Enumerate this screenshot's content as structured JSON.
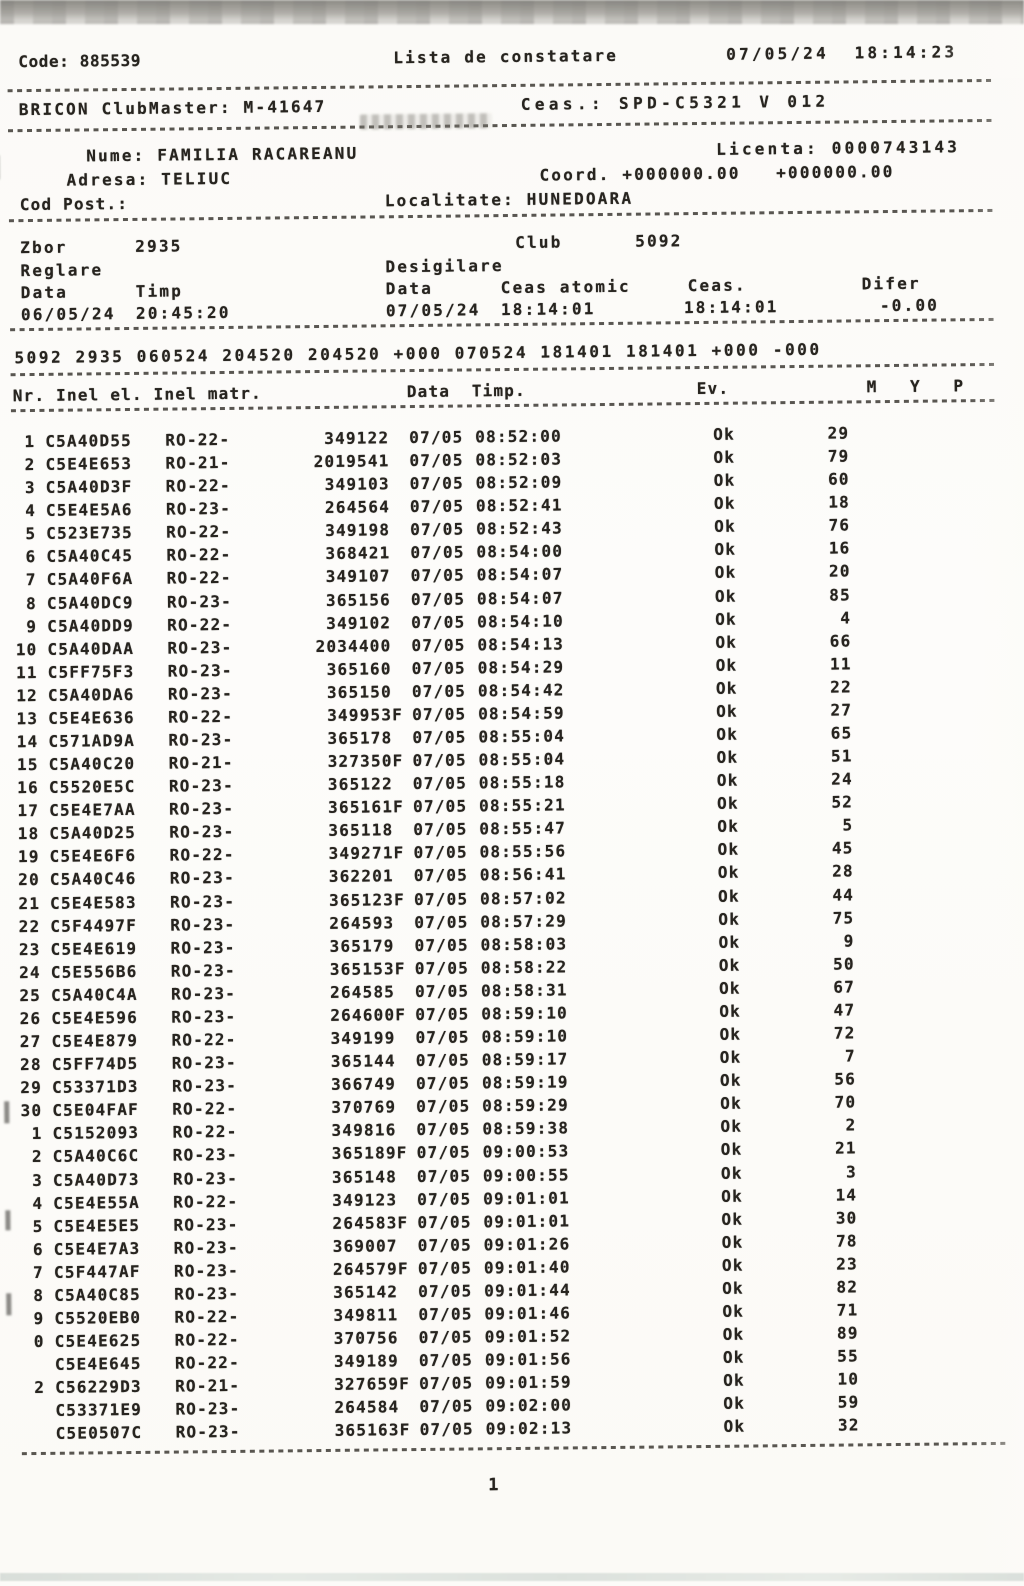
{
  "header": {
    "code": "Code: 885539",
    "title": "Lista de constatare",
    "datetime": "07/05/24  18:14:23",
    "device": "BRICON ClubMaster: M-41647",
    "clock": "Ceas.: SPD-C5321 V 012"
  },
  "member": {
    "nume": "Nume: FAMILIA RACAREANU",
    "licenta": "Licenta: 0000743143",
    "adresa": "Adresa: TELIUC",
    "coord": "Coord. +000000.00   +000000.00",
    "cod_post": "Cod Post.:",
    "localitate": "Localitate: HUNEDOARA"
  },
  "flight": {
    "zbor_label": "Zbor",
    "zbor": "2935",
    "club_label": "Club",
    "club": "5092",
    "reglare_label": "Reglare",
    "desigilare_label": "Desigilare",
    "col_data1": "Data",
    "col_timp": "Timp",
    "col_data2": "Data",
    "col_ceas_atomic": "Ceas atomic",
    "col_ceas": "Ceas.",
    "col_difer": "Difer",
    "reglare_data": "06/05/24",
    "reglare_timp": "20:45:20",
    "desig_data": "07/05/24",
    "desig_atomic": "18:14:01",
    "desig_ceas": "18:14:01",
    "difer": "-0.00"
  },
  "summary_line": "5092 2935 060524 204520 204520 +000 070524 181401 181401 +000 -000",
  "table": {
    "header_left": "Nr. Inel el. Inel matr.",
    "header_data": "Data  Timp.",
    "header_ev": "Ev.",
    "header_myp": "M   Y   P",
    "rows": [
      {
        "nr": "1",
        "inel": "C5A40D55",
        "serie": "RO-22-",
        "matr": "349122",
        "data": "07/05",
        "timp": "08:52:00",
        "ev": "Ok",
        "val": "29"
      },
      {
        "nr": "2",
        "inel": "C5E4E653",
        "serie": "RO-21-",
        "matr": "2019541",
        "data": "07/05",
        "timp": "08:52:03",
        "ev": "Ok",
        "val": "79"
      },
      {
        "nr": "3",
        "inel": "C5A40D3F",
        "serie": "RO-22-",
        "matr": "349103",
        "data": "07/05",
        "timp": "08:52:09",
        "ev": "Ok",
        "val": "60"
      },
      {
        "nr": "4",
        "inel": "C5E4E5A6",
        "serie": "RO-23-",
        "matr": "264564",
        "data": "07/05",
        "timp": "08:52:41",
        "ev": "Ok",
        "val": "18"
      },
      {
        "nr": "5",
        "inel": "C523E735",
        "serie": "RO-22-",
        "matr": "349198",
        "data": "07/05",
        "timp": "08:52:43",
        "ev": "Ok",
        "val": "76"
      },
      {
        "nr": "6",
        "inel": "C5A40C45",
        "serie": "RO-22-",
        "matr": "368421",
        "data": "07/05",
        "timp": "08:54:00",
        "ev": "Ok",
        "val": "16"
      },
      {
        "nr": "7",
        "inel": "C5A40F6A",
        "serie": "RO-22-",
        "matr": "349107",
        "data": "07/05",
        "timp": "08:54:07",
        "ev": "Ok",
        "val": "20"
      },
      {
        "nr": "8",
        "inel": "C5A40DC9",
        "serie": "RO-23-",
        "matr": "365156",
        "data": "07/05",
        "timp": "08:54:07",
        "ev": "Ok",
        "val": "85"
      },
      {
        "nr": "9",
        "inel": "C5A40DD9",
        "serie": "RO-22-",
        "matr": "349102",
        "data": "07/05",
        "timp": "08:54:10",
        "ev": "Ok",
        "val": "4"
      },
      {
        "nr": "10",
        "inel": "C5A40DAA",
        "serie": "RO-23-",
        "matr": "2034400",
        "data": "07/05",
        "timp": "08:54:13",
        "ev": "Ok",
        "val": "66"
      },
      {
        "nr": "11",
        "inel": "C5FF75F3",
        "serie": "RO-23-",
        "matr": "365160",
        "data": "07/05",
        "timp": "08:54:29",
        "ev": "Ok",
        "val": "11"
      },
      {
        "nr": "12",
        "inel": "C5A40DA6",
        "serie": "RO-23-",
        "matr": "365150",
        "data": "07/05",
        "timp": "08:54:42",
        "ev": "Ok",
        "val": "22"
      },
      {
        "nr": "13",
        "inel": "C5E4E636",
        "serie": "RO-22-",
        "matr": "349953F",
        "data": "07/05",
        "timp": "08:54:59",
        "ev": "Ok",
        "val": "27"
      },
      {
        "nr": "14",
        "inel": "C571AD9A",
        "serie": "RO-23-",
        "matr": "365178",
        "data": "07/05",
        "timp": "08:55:04",
        "ev": "Ok",
        "val": "65"
      },
      {
        "nr": "15",
        "inel": "C5A40C20",
        "serie": "RO-21-",
        "matr": "327350F",
        "data": "07/05",
        "timp": "08:55:04",
        "ev": "Ok",
        "val": "51"
      },
      {
        "nr": "16",
        "inel": "C5520E5C",
        "serie": "RO-23-",
        "matr": "365122",
        "data": "07/05",
        "timp": "08:55:18",
        "ev": "Ok",
        "val": "24"
      },
      {
        "nr": "17",
        "inel": "C5E4E7AA",
        "serie": "RO-23-",
        "matr": "365161F",
        "data": "07/05",
        "timp": "08:55:21",
        "ev": "Ok",
        "val": "52"
      },
      {
        "nr": "18",
        "inel": "C5A40D25",
        "serie": "RO-23-",
        "matr": "365118",
        "data": "07/05",
        "timp": "08:55:47",
        "ev": "Ok",
        "val": "5"
      },
      {
        "nr": "19",
        "inel": "C5E4E6F6",
        "serie": "RO-22-",
        "matr": "349271F",
        "data": "07/05",
        "timp": "08:55:56",
        "ev": "Ok",
        "val": "45"
      },
      {
        "nr": "20",
        "inel": "C5A40C46",
        "serie": "RO-23-",
        "matr": "362201",
        "data": "07/05",
        "timp": "08:56:41",
        "ev": "Ok",
        "val": "28"
      },
      {
        "nr": "21",
        "inel": "C5E4E583",
        "serie": "RO-23-",
        "matr": "365123F",
        "data": "07/05",
        "timp": "08:57:02",
        "ev": "Ok",
        "val": "44"
      },
      {
        "nr": "22",
        "inel": "C5F4497F",
        "serie": "RO-23-",
        "matr": "264593",
        "data": "07/05",
        "timp": "08:57:29",
        "ev": "Ok",
        "val": "75"
      },
      {
        "nr": "23",
        "inel": "C5E4E619",
        "serie": "RO-23-",
        "matr": "365179",
        "data": "07/05",
        "timp": "08:58:03",
        "ev": "Ok",
        "val": "9"
      },
      {
        "nr": "24",
        "inel": "C5E556B6",
        "serie": "RO-23-",
        "matr": "365153F",
        "data": "07/05",
        "timp": "08:58:22",
        "ev": "Ok",
        "val": "50"
      },
      {
        "nr": "25",
        "inel": "C5A40C4A",
        "serie": "RO-23-",
        "matr": "264585",
        "data": "07/05",
        "timp": "08:58:31",
        "ev": "Ok",
        "val": "67"
      },
      {
        "nr": "26",
        "inel": "C5E4E596",
        "serie": "RO-23-",
        "matr": "264600F",
        "data": "07/05",
        "timp": "08:59:10",
        "ev": "Ok",
        "val": "47"
      },
      {
        "nr": "27",
        "inel": "C5E4E879",
        "serie": "RO-22-",
        "matr": "349199",
        "data": "07/05",
        "timp": "08:59:10",
        "ev": "Ok",
        "val": "72"
      },
      {
        "nr": "28",
        "inel": "C5FF74D5",
        "serie": "RO-23-",
        "matr": "365144",
        "data": "07/05",
        "timp": "08:59:17",
        "ev": "Ok",
        "val": "7"
      },
      {
        "nr": "29",
        "inel": "C53371D3",
        "serie": "RO-23-",
        "matr": "366749",
        "data": "07/05",
        "timp": "08:59:19",
        "ev": "Ok",
        "val": "56"
      },
      {
        "nr": "30",
        "inel": "C5E04FAF",
        "serie": "RO-22-",
        "matr": "370769",
        "data": "07/05",
        "timp": "08:59:29",
        "ev": "Ok",
        "val": "70"
      },
      {
        "nr": "1",
        "inel": "C5152093",
        "serie": "RO-22-",
        "matr": "349816",
        "data": "07/05",
        "timp": "08:59:38",
        "ev": "Ok",
        "val": "2"
      },
      {
        "nr": "2",
        "inel": "C5A40C6C",
        "serie": "RO-23-",
        "matr": "365189F",
        "data": "07/05",
        "timp": "09:00:53",
        "ev": "Ok",
        "val": "21"
      },
      {
        "nr": "3",
        "inel": "C5A40D73",
        "serie": "RO-23-",
        "matr": "365148",
        "data": "07/05",
        "timp": "09:00:55",
        "ev": "Ok",
        "val": "3"
      },
      {
        "nr": "4",
        "inel": "C5E4E55A",
        "serie": "RO-22-",
        "matr": "349123",
        "data": "07/05",
        "timp": "09:01:01",
        "ev": "Ok",
        "val": "14"
      },
      {
        "nr": "5",
        "inel": "C5E4E5E5",
        "serie": "RO-23-",
        "matr": "264583F",
        "data": "07/05",
        "timp": "09:01:01",
        "ev": "Ok",
        "val": "30"
      },
      {
        "nr": "6",
        "inel": "C5E4E7A3",
        "serie": "RO-23-",
        "matr": "369007",
        "data": "07/05",
        "timp": "09:01:26",
        "ev": "Ok",
        "val": "78"
      },
      {
        "nr": "7",
        "inel": "C5F447AF",
        "serie": "RO-23-",
        "matr": "264579F",
        "data": "07/05",
        "timp": "09:01:40",
        "ev": "Ok",
        "val": "23"
      },
      {
        "nr": "8",
        "inel": "C5A40C85",
        "serie": "RO-23-",
        "matr": "365142",
        "data": "07/05",
        "timp": "09:01:44",
        "ev": "Ok",
        "val": "82"
      },
      {
        "nr": "9",
        "inel": "C5520EB0",
        "serie": "RO-22-",
        "matr": "349811",
        "data": "07/05",
        "timp": "09:01:46",
        "ev": "Ok",
        "val": "71"
      },
      {
        "nr": "0",
        "inel": "C5E4E625",
        "serie": "RO-22-",
        "matr": "370756",
        "data": "07/05",
        "timp": "09:01:52",
        "ev": "Ok",
        "val": "89"
      },
      {
        "nr": "",
        "inel": "C5E4E645",
        "serie": "RO-22-",
        "matr": "349189",
        "data": "07/05",
        "timp": "09:01:56",
        "ev": "Ok",
        "val": "55"
      },
      {
        "nr": "2",
        "inel": "C56229D3",
        "serie": "RO-21-",
        "matr": "327659F",
        "data": "07/05",
        "timp": "09:01:59",
        "ev": "Ok",
        "val": "10"
      },
      {
        "nr": "",
        "inel": "C53371E9",
        "serie": "RO-23-",
        "matr": "264584",
        "data": "07/05",
        "timp": "09:02:00",
        "ev": "Ok",
        "val": "59"
      },
      {
        "nr": "",
        "inel": "C5E0507C",
        "serie": "RO-23-",
        "matr": "365163F",
        "data": "07/05",
        "timp": "09:02:13",
        "ev": "Ok",
        "val": "32"
      }
    ]
  },
  "footer": {
    "page": "1"
  }
}
